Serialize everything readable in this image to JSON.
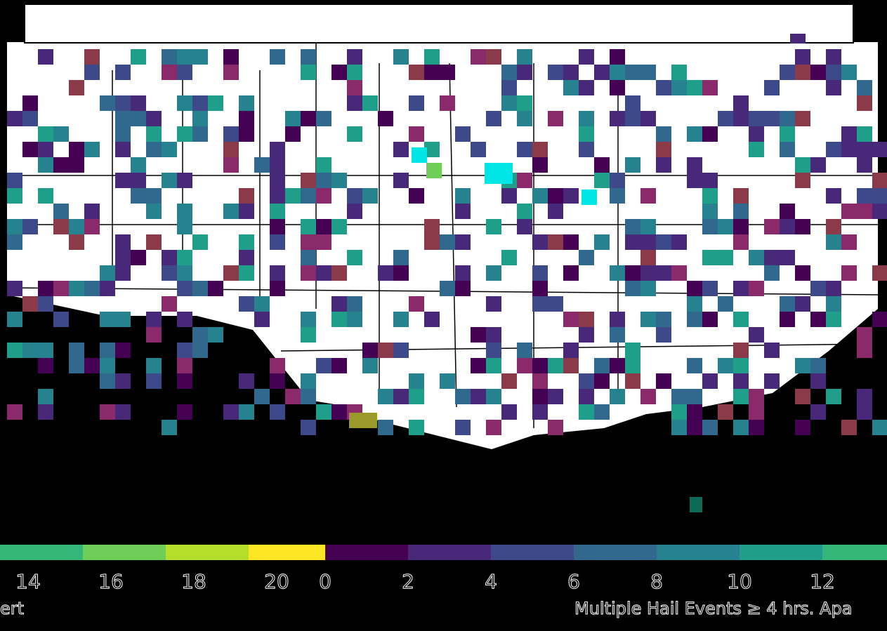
{
  "map": {
    "background": "#ffffff",
    "ocean": "#000000",
    "border_color": "#000000"
  },
  "colorbar_left": {
    "ticks": [
      "14",
      "16",
      "18",
      "20"
    ],
    "title": "ert",
    "colors": [
      "#35b779",
      "#6ece58",
      "#b5de2b",
      "#fde725"
    ]
  },
  "colorbar_right": {
    "ticks": [
      "0",
      "2",
      "4",
      "6",
      "8",
      "10",
      "12"
    ],
    "title": "Multiple Hail Events ≥ 4 hrs. Apa",
    "colors": [
      "#440154",
      "#482878",
      "#3e4989",
      "#31688e",
      "#26828e",
      "#1f9e89",
      "#35b779"
    ]
  },
  "legend_palette": {
    "dark": "#440154",
    "purple": "#482878",
    "indigo": "#3e4989",
    "blue": "#31688e",
    "teal": "#26828e",
    "green": "#1f9e89",
    "light_green": "#35b779",
    "maroon": "#8b3a4a",
    "magenta": "#8b2a6a",
    "cyan": "#00e5e5",
    "olive": "#9a9a2a",
    "lime": "#6ece58"
  }
}
